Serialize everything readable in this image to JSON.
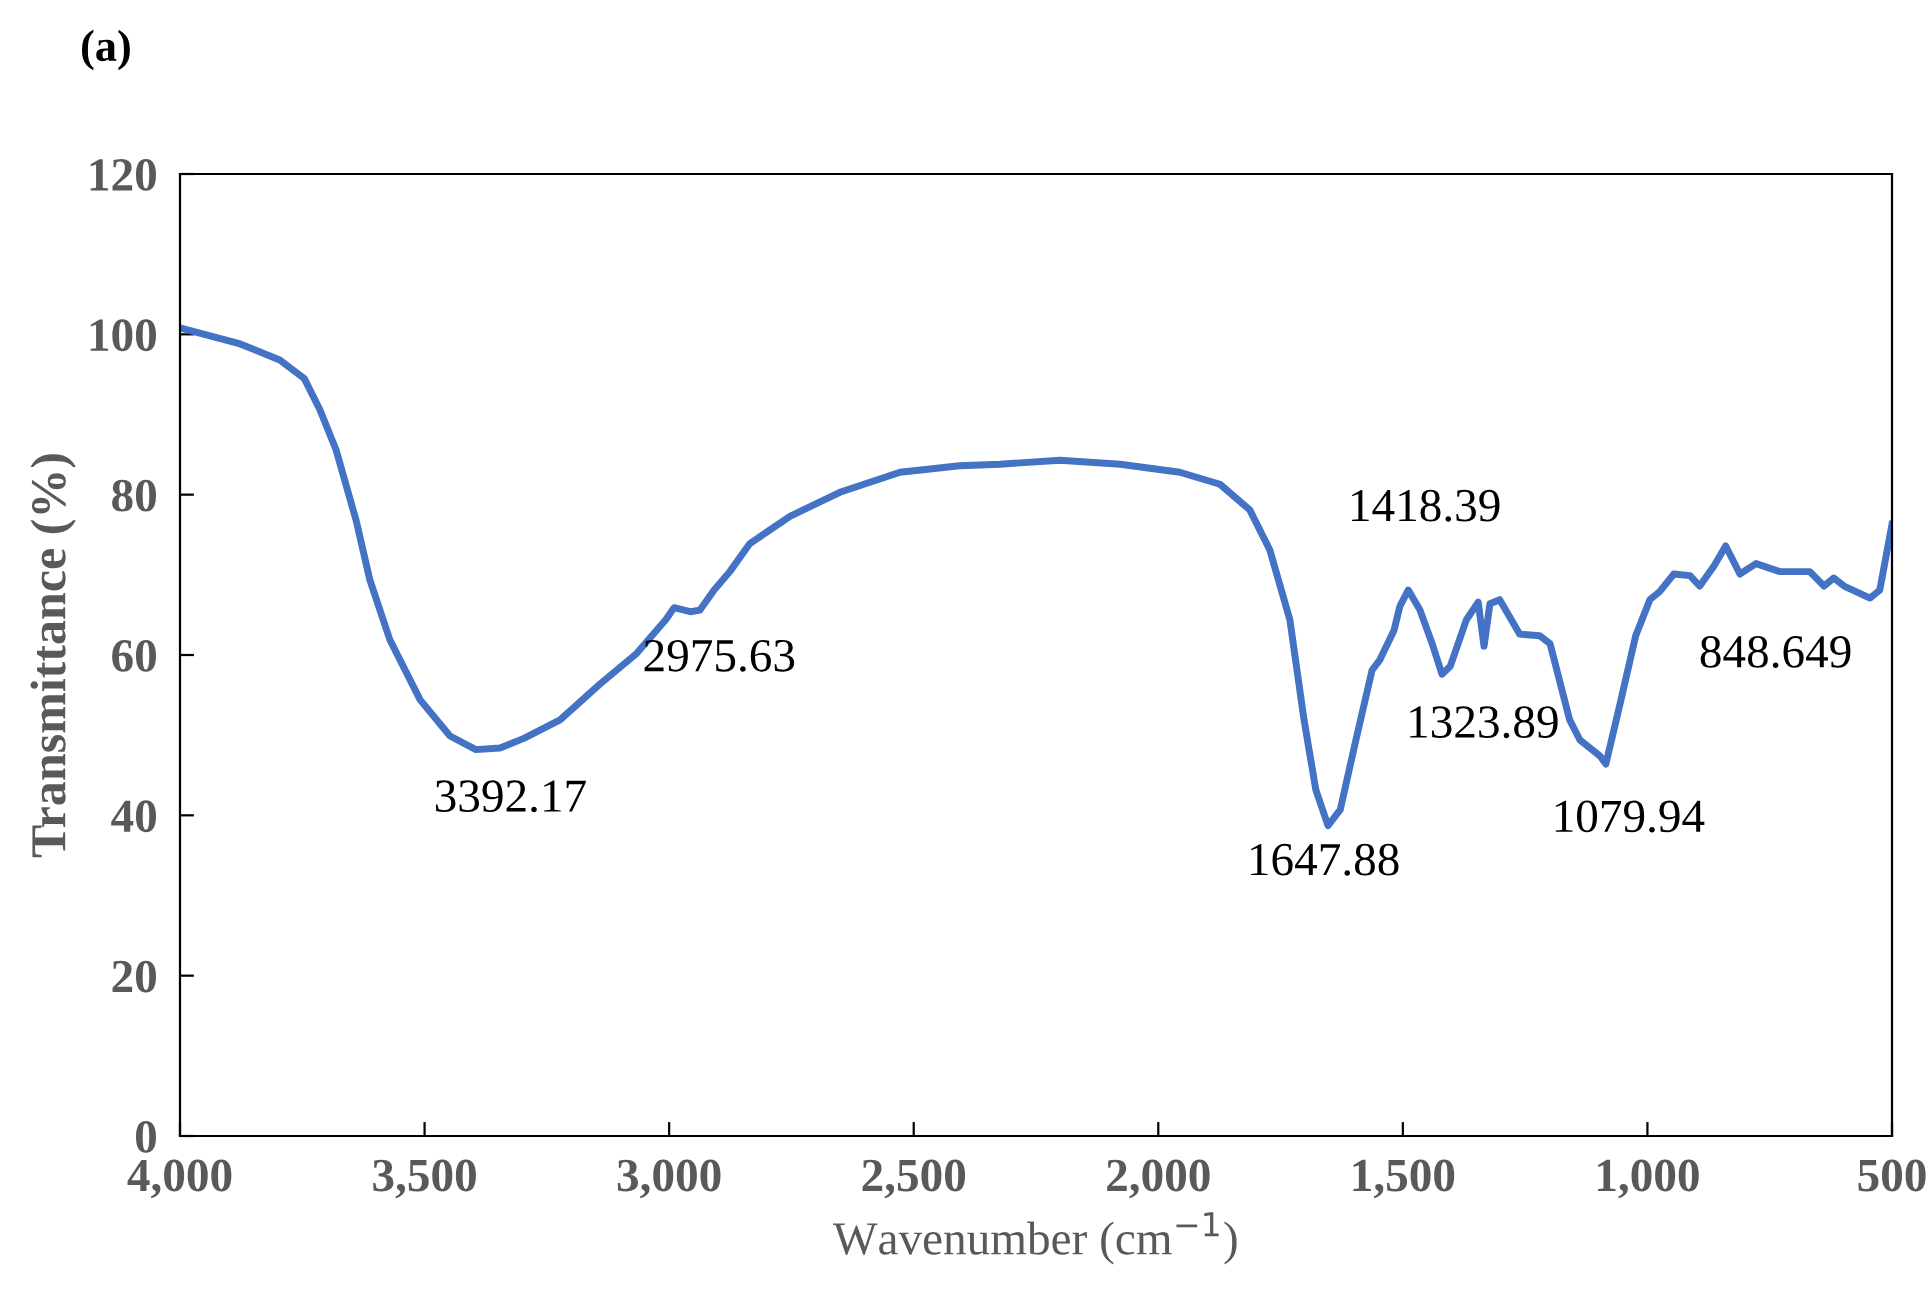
{
  "chart_data": {
    "type": "line",
    "title": "(a)",
    "xlabel": "Wavenumber (cm$^{−1}$)",
    "ylabel": "Transmittance (%)",
    "x": [
      4000,
      3877,
      3796,
      3746,
      3714,
      3681,
      3640,
      3612,
      3571,
      3509,
      3448,
      3395,
      3346,
      3297,
      3223,
      3141,
      3068,
      3007,
      2990,
      2957,
      2937,
      2908,
      2876,
      2835,
      2753,
      2651,
      2528,
      2406,
      2324,
      2201,
      2078,
      1956,
      1874,
      1813,
      1772,
      1731,
      1702,
      1678,
      1653,
      1628,
      1596,
      1563,
      1547,
      1518,
      1506,
      1489,
      1465,
      1440,
      1420,
      1403,
      1370,
      1346,
      1334,
      1322,
      1302,
      1261,
      1220,
      1199,
      1159,
      1138,
      1097,
      1085,
      1056,
      1024,
      995,
      975,
      946,
      913,
      893,
      864,
      840,
      811,
      778,
      729,
      668,
      639,
      619,
      598,
      545,
      525,
      500
    ],
    "series": [
      {
        "color": "#4472c4",
        "values": [
          100.8,
          98.8,
          96.8,
          94.5,
          90.6,
          85.6,
          76.8,
          69.4,
          61.9,
          54.4,
          49.9,
          48.2,
          48.4,
          49.6,
          51.9,
          56.4,
          60.1,
          64.4,
          65.9,
          65.4,
          65.6,
          68.1,
          70.4,
          73.9,
          77.3,
          80.3,
          82.8,
          83.6,
          83.8,
          84.3,
          83.8,
          82.8,
          81.3,
          78.1,
          73.1,
          64.4,
          51.9,
          43.2,
          38.7,
          40.7,
          49.4,
          58.1,
          59.4,
          63.1,
          66.1,
          68.1,
          65.6,
          61.4,
          57.6,
          58.6,
          64.4,
          66.6,
          61.1,
          66.4,
          66.9,
          62.6,
          62.4,
          61.4,
          51.9,
          49.4,
          47.4,
          46.4,
          53.9,
          62.4,
          66.9,
          67.9,
          70.1,
          69.9,
          68.6,
          71.1,
          73.6,
          70.1,
          71.4,
          70.4,
          70.4,
          68.6,
          69.6,
          68.6,
          67.1,
          68.1,
          76.3
        ]
      }
    ],
    "xlim": [
      4000,
      500
    ],
    "xticks": [
      {
        "value": 4000,
        "label": "4,000"
      },
      {
        "value": 3500,
        "label": "3,500"
      },
      {
        "value": 3000,
        "label": "3,000"
      },
      {
        "value": 2500,
        "label": "2,500"
      },
      {
        "value": 2000,
        "label": "2,000"
      },
      {
        "value": 1500,
        "label": "1,500"
      },
      {
        "value": 1000,
        "label": "1,000"
      },
      500
    ],
    "ylim": [
      0,
      120
    ],
    "yticks": [
      0,
      20,
      40,
      60,
      80,
      100,
      120
    ],
    "annotations": [
      "3392.17",
      "2975.63",
      "1647.88",
      "1418.39",
      "1323.89",
      "1079.94",
      "848.649"
    ],
    "line_style": "solid"
  }
}
